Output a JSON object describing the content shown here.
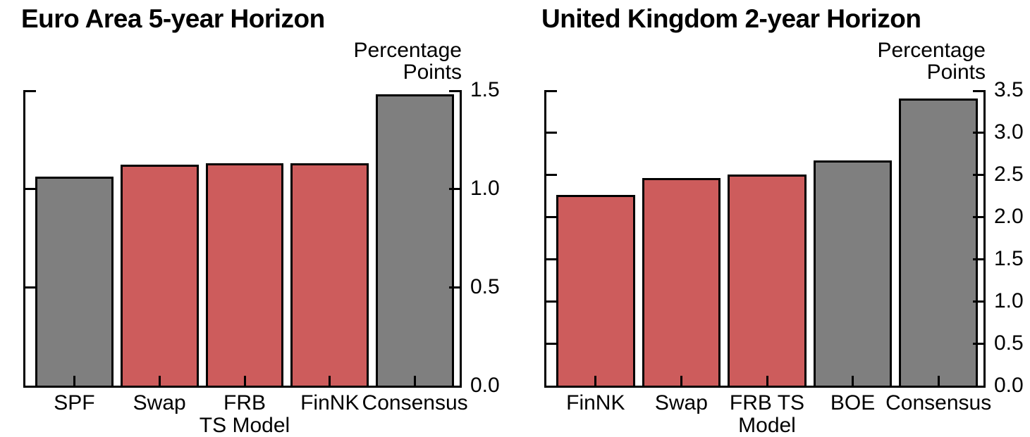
{
  "page": {
    "background": "#ffffff"
  },
  "colors": {
    "red": "#CD5C5C",
    "gray": "#7F7F7F",
    "axis": "#000000",
    "text": "#000000",
    "background": "#ffffff"
  },
  "chart_data": [
    {
      "type": "bar",
      "title": "Euro Area 5-year Horizon",
      "unit_label_lines": [
        "Percentage",
        "Points"
      ],
      "ylabel": "Percentage Points",
      "xlabel": "",
      "categories": [
        [
          "SPF"
        ],
        [
          "Swap"
        ],
        [
          "FRB",
          "TS Model"
        ],
        [
          "FinNK"
        ],
        [
          "Consensus"
        ]
      ],
      "values": [
        1.06,
        1.12,
        1.13,
        1.13,
        1.48
      ],
      "bar_colors": [
        "gray",
        "red",
        "red",
        "red",
        "gray"
      ],
      "ylim": [
        0,
        1.5
      ],
      "ytick_step": 0.5,
      "ytick_labels": [
        "0.0",
        "0.5",
        "1.0",
        "1.5"
      ],
      "value_axis_side": "right",
      "grid": false,
      "legend": null
    },
    {
      "type": "bar",
      "title": "United Kingdom 2-year Horizon",
      "unit_label_lines": [
        "Percentage",
        "Points"
      ],
      "ylabel": "Percentage Points",
      "xlabel": "",
      "categories": [
        [
          "FinNK"
        ],
        [
          "Swap"
        ],
        [
          "FRB TS",
          "Model"
        ],
        [
          "BOE"
        ],
        [
          "Consensus"
        ]
      ],
      "values": [
        2.26,
        2.46,
        2.5,
        2.67,
        3.4
      ],
      "bar_colors": [
        "red",
        "red",
        "red",
        "gray",
        "gray"
      ],
      "ylim": [
        0,
        3.5
      ],
      "ytick_step": 0.5,
      "ytick_labels": [
        "0.0",
        "0.5",
        "1.0",
        "1.5",
        "2.0",
        "2.5",
        "3.0",
        "3.5"
      ],
      "value_axis_side": "right",
      "grid": false,
      "legend": null
    }
  ]
}
